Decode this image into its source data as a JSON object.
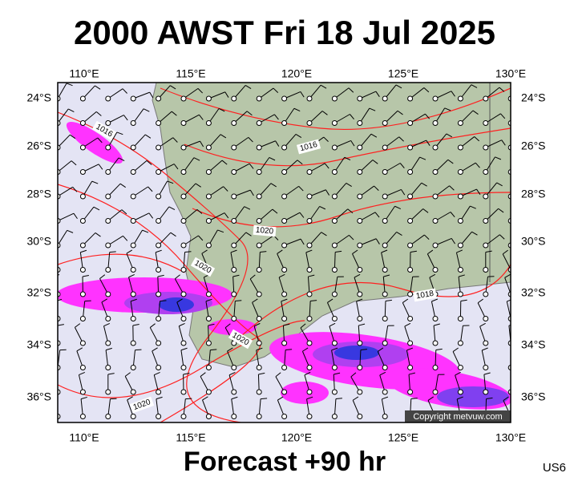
{
  "header": {
    "title": "2000 AWST Fri 18 Jul 2025"
  },
  "map": {
    "lon_labels": [
      "110°E",
      "115°E",
      "120°E",
      "125°E",
      "130°E"
    ],
    "lat_labels": [
      "24°S",
      "26°S",
      "28°S",
      "30°S",
      "32°S",
      "34°S",
      "36°S"
    ],
    "isobar_labels": [
      "1016",
      "1016",
      "1020",
      "1020",
      "1020",
      "1018",
      "1020"
    ],
    "copyright": "Copyright metvuw.com"
  },
  "footer": {
    "forecast": "Forecast +90 hr",
    "code": "US6"
  }
}
